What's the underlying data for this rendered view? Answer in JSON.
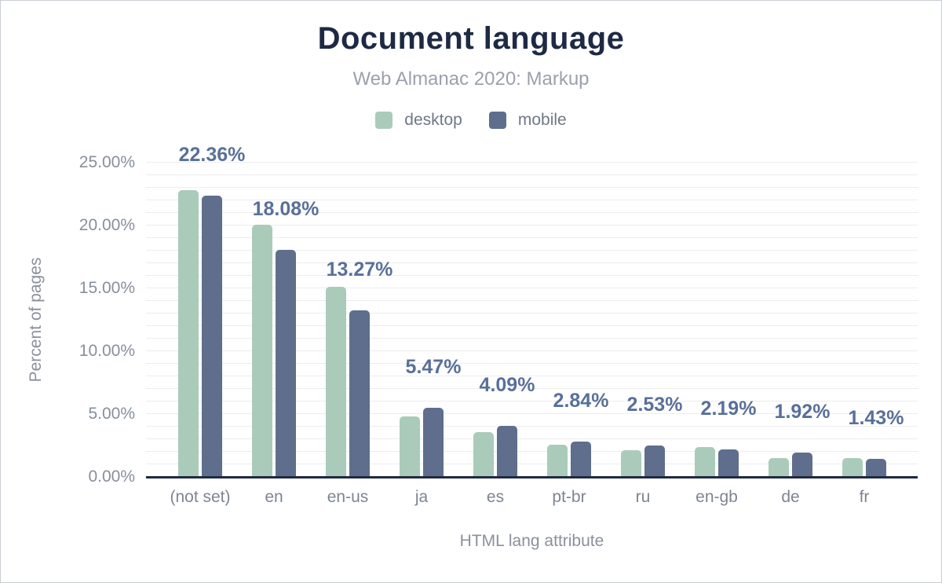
{
  "header": {
    "title": "Document language",
    "subtitle": "Web Almanac 2020: Markup"
  },
  "legend": [
    {
      "label": "desktop",
      "color": "#aacbba"
    },
    {
      "label": "mobile",
      "color": "#5f6e8c"
    }
  ],
  "colors": {
    "desktop_bar": "#aacbba",
    "mobile_bar": "#5f6e8c",
    "title_text": "#1e2a44",
    "subtitle_text": "#9aa1ac",
    "axis_text": "#878f9c",
    "value_label_text": "#587099",
    "axis_line": "#1e2a44",
    "gridline": "#ededed"
  },
  "chart_data": {
    "type": "bar",
    "title": "Document language",
    "subtitle": "Web Almanac 2020: Markup",
    "categories": [
      "(not set)",
      "en",
      "en-us",
      "ja",
      "es",
      "pt-br",
      "ru",
      "en-gb",
      "de",
      "fr"
    ],
    "series": [
      {
        "name": "desktop",
        "color": "#aacbba",
        "values": [
          22.82,
          20.09,
          15.15,
          4.82,
          3.56,
          2.58,
          2.12,
          2.37,
          1.47,
          1.5
        ]
      },
      {
        "name": "mobile",
        "color": "#5f6e8c",
        "values": [
          22.36,
          18.08,
          13.27,
          5.47,
          4.09,
          2.84,
          2.53,
          2.19,
          1.92,
          1.43
        ]
      }
    ],
    "value_labels": [
      "22.36%",
      "18.08%",
      "13.27%",
      "5.47%",
      "4.09%",
      "2.84%",
      "2.53%",
      "2.19%",
      "1.92%",
      "1.43%"
    ],
    "value_label_series": "mobile",
    "xlabel": "HTML lang attribute",
    "ylabel": "Percent of pages",
    "ylim": [
      0,
      25
    ],
    "y_tick_values": [
      0,
      5,
      10,
      15,
      20,
      25
    ],
    "y_ticks": [
      "0.00%",
      "5.00%",
      "10.00%",
      "15.00%",
      "20.00%",
      "25.00%"
    ],
    "gridline_step": 1,
    "grid": true,
    "legend_position": "top"
  }
}
